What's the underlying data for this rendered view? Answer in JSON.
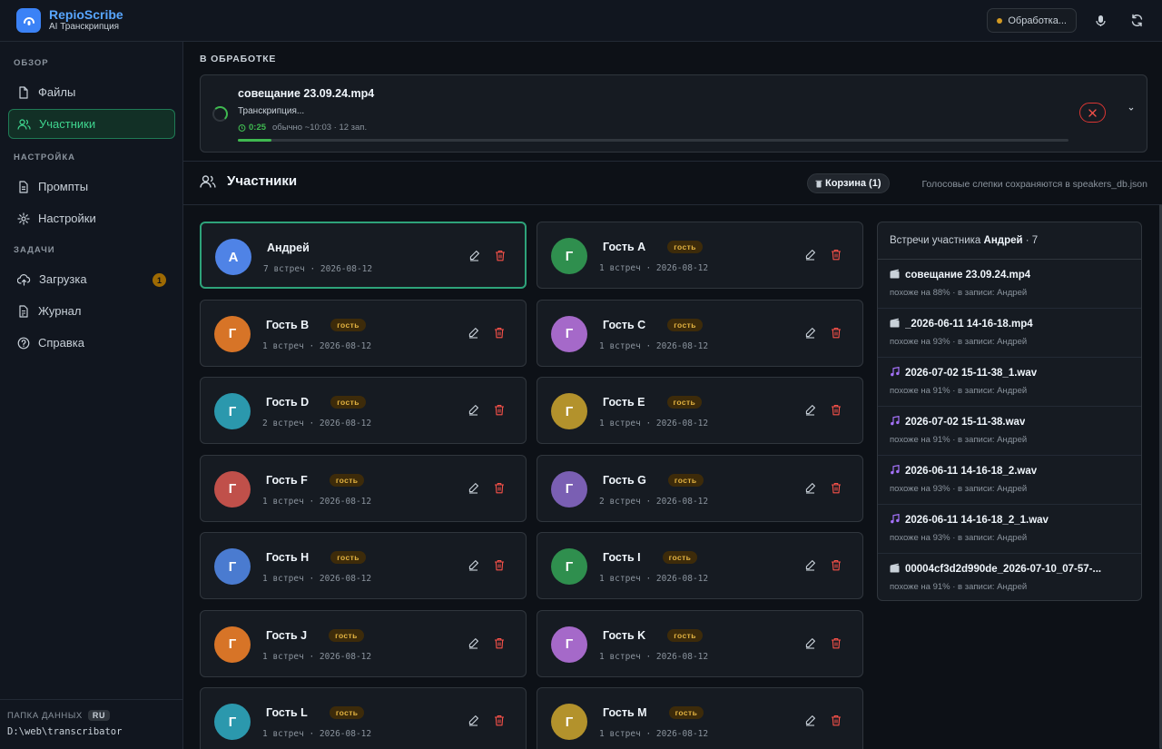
{
  "app": {
    "title": "RepioScribe",
    "subtitle": "AI Транскрипция"
  },
  "topbar": {
    "processing_label": "Обработка...",
    "status_color": "#d29922"
  },
  "sidebar": {
    "sections": [
      {
        "label": "ОБЗОР",
        "items": [
          {
            "label": "Файлы",
            "icon": "file-icon",
            "active": false
          },
          {
            "label": "Участники",
            "icon": "users-icon",
            "active": true
          }
        ]
      },
      {
        "label": "НАСТРОЙКА",
        "items": [
          {
            "label": "Промпты",
            "icon": "document-icon",
            "active": false
          },
          {
            "label": "Настройки",
            "icon": "gear-icon",
            "active": false
          }
        ]
      },
      {
        "label": "ЗАДАЧИ",
        "items": [
          {
            "label": "Загрузка",
            "icon": "upload-icon",
            "active": false,
            "badge": "1"
          },
          {
            "label": "Журнал",
            "icon": "journal-icon",
            "active": false
          },
          {
            "label": "Справка",
            "icon": "help-icon",
            "active": false
          }
        ]
      }
    ],
    "footer": {
      "label": "ПАПКА ДАННЫХ",
      "lang": "RU",
      "path": "D:\\web\\transcribator"
    }
  },
  "processing": {
    "heading": "В ОБРАБОТКЕ",
    "job": {
      "name": "совещание 23.09.24.mp4",
      "status": "Транскрипция...",
      "elapsed": "0:25",
      "meta": "обычно ~10:03 · 12 зап.",
      "progress": 0.04
    }
  },
  "participants": {
    "title": "Участники",
    "trash_label": "Корзина (1)",
    "note": "Голосовые слепки сохраняются в speakers_db.json",
    "guest_label": "гость",
    "list": [
      {
        "initial": "А",
        "name": "Андрей",
        "meta": "7 встреч · 2026-08-12",
        "color": "#4f83e6",
        "guest": false,
        "selected": true
      },
      {
        "initial": "Г",
        "name": "Гость A",
        "meta": "1 встреч · 2026-08-12",
        "color": "#2f8f4e",
        "guest": true
      },
      {
        "initial": "Г",
        "name": "Гость B",
        "meta": "1 встреч · 2026-08-12",
        "color": "#d77427",
        "guest": true
      },
      {
        "initial": "Г",
        "name": "Гость C",
        "meta": "1 встреч · 2026-08-12",
        "color": "#a569c9",
        "guest": true
      },
      {
        "initial": "Г",
        "name": "Гость D",
        "meta": "2 встреч · 2026-08-12",
        "color": "#2b98ad",
        "guest": true
      },
      {
        "initial": "Г",
        "name": "Гость E",
        "meta": "1 встреч · 2026-08-12",
        "color": "#b3922c",
        "guest": true
      },
      {
        "initial": "Г",
        "name": "Гость F",
        "meta": "1 встреч · 2026-08-12",
        "color": "#c0504a",
        "guest": true
      },
      {
        "initial": "Г",
        "name": "Гость G",
        "meta": "2 встреч · 2026-08-12",
        "color": "#7a5fb3",
        "guest": true
      },
      {
        "initial": "Г",
        "name": "Гость H",
        "meta": "1 встреч · 2026-08-12",
        "color": "#4a7bd0",
        "guest": true
      },
      {
        "initial": "Г",
        "name": "Гость I",
        "meta": "1 встреч · 2026-08-12",
        "color": "#2f8f4e",
        "guest": true
      },
      {
        "initial": "Г",
        "name": "Гость J",
        "meta": "1 встреч · 2026-08-12",
        "color": "#d77427",
        "guest": true
      },
      {
        "initial": "Г",
        "name": "Гость K",
        "meta": "1 встреч · 2026-08-12",
        "color": "#a569c9",
        "guest": true
      },
      {
        "initial": "Г",
        "name": "Гость L",
        "meta": "1 встреч · 2026-08-12",
        "color": "#2b98ad",
        "guest": true
      },
      {
        "initial": "Г",
        "name": "Гость M",
        "meta": "1 встреч · 2026-08-12",
        "color": "#b3922c",
        "guest": true
      }
    ]
  },
  "meetings": {
    "heading_prefix": "Встречи участника",
    "heading_name": "Андрей",
    "heading_count": "· 7",
    "items": [
      {
        "type": "video",
        "name": "совещание 23.09.24.mp4",
        "sub": "похоже на 88% · в записи: Андрей"
      },
      {
        "type": "video",
        "name": "_2026-06-11 14-16-18.mp4",
        "sub": "похоже на 93% · в записи: Андрей"
      },
      {
        "type": "audio",
        "name": "2026-07-02 15-11-38_1.wav",
        "sub": "похоже на 91% · в записи: Андрей"
      },
      {
        "type": "audio",
        "name": "2026-07-02 15-11-38.wav",
        "sub": "похоже на 91% · в записи: Андрей"
      },
      {
        "type": "audio",
        "name": "2026-06-11 14-16-18_2.wav",
        "sub": "похоже на 93% · в записи: Андрей"
      },
      {
        "type": "audio",
        "name": "2026-06-11 14-16-18_2_1.wav",
        "sub": "похоже на 93% · в записи: Андрей"
      },
      {
        "type": "video",
        "name": "00004cf3d2d990de_2026-07-10_07-57-...",
        "sub": "похоже на 91% · в записи: Андрей"
      }
    ]
  }
}
